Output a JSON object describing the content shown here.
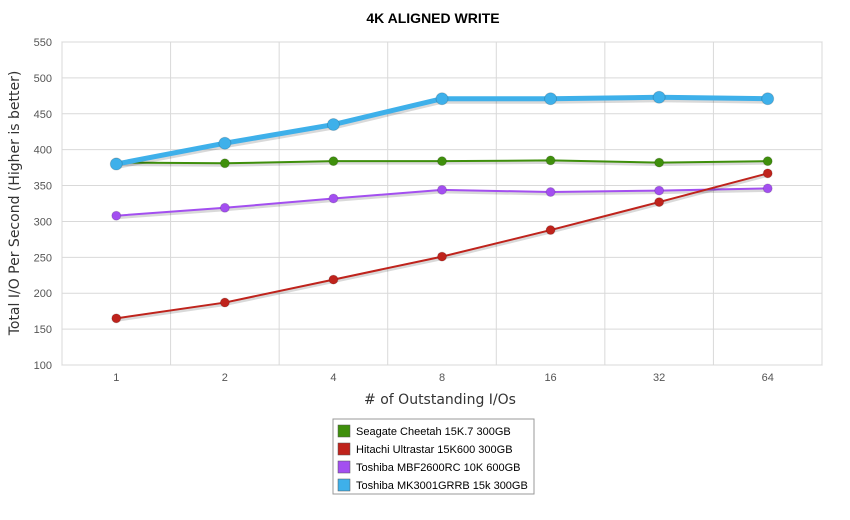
{
  "chart_data": {
    "type": "line",
    "title": "4K ALIGNED WRITE",
    "xlabel": "# of Outstanding I/Os",
    "ylabel": "Total I/O Per Second (Higher is better)",
    "categories": [
      "1",
      "2",
      "4",
      "8",
      "16",
      "32",
      "64"
    ],
    "ylim": [
      100,
      550
    ],
    "yticks": [
      100,
      150,
      200,
      250,
      300,
      350,
      400,
      450,
      500,
      550
    ],
    "grid": true,
    "legend_position": "bottom-center",
    "series": [
      {
        "name": "Seagate Cheetah 15K.7 300GB",
        "color": "#3f8f0c",
        "values": [
          382,
          381,
          384,
          384,
          385,
          382,
          384
        ]
      },
      {
        "name": "Hitachi Ultrastar 15K600 300GB",
        "color": "#bf231c",
        "values": [
          165,
          187,
          219,
          251,
          288,
          327,
          367
        ]
      },
      {
        "name": "Toshiba MBF2600RC 10K 600GB",
        "color": "#a34ff0",
        "values": [
          308,
          319,
          332,
          344,
          341,
          343,
          346
        ]
      },
      {
        "name": "Toshiba MK3001GRRB 15k 300GB",
        "color": "#3eb0ea",
        "values": [
          380,
          409,
          435,
          471,
          471,
          473,
          471
        ]
      }
    ]
  }
}
